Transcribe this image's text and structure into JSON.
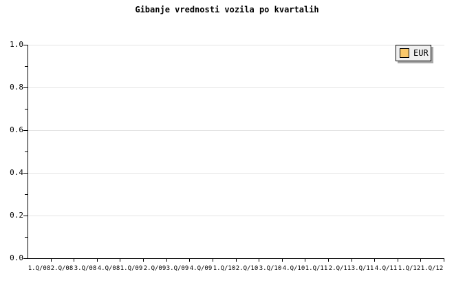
{
  "title": "Gibanje vrednosti vozila po kvartalih",
  "legend": {
    "label": "EUR",
    "swatch_color": "#f9c86b"
  },
  "colors": {
    "background": "#ffffff",
    "axis": "#000000",
    "grid": "#e4e4e4",
    "text": "#000000",
    "legend_background": "#f0f0f0",
    "legend_border": "#000000",
    "legend_shadow": "#a8a8a8"
  },
  "chart_data": {
    "type": "line",
    "title": "Gibanje vrednosti vozila po kvartalih",
    "categories": [
      "1.Q/08",
      "2.Q/08",
      "3.Q/08",
      "4.Q/08",
      "1.Q/09",
      "2.Q/09",
      "3.Q/09",
      "4.Q/09",
      "1.Q/10",
      "2.Q/10",
      "3.Q/10",
      "4.Q/10",
      "1.Q/11",
      "2.Q/11",
      "3.Q/11",
      "4.Q/11",
      "1.Q/12",
      "1.Q/12"
    ],
    "series": [
      {
        "name": "EUR",
        "color": "#f9c86b",
        "values": []
      }
    ],
    "xlabel": "",
    "ylabel": "",
    "ylim": [
      0.0,
      1.0
    ],
    "ytick_labels": [
      "0.0",
      "0.2",
      "0.4",
      "0.6",
      "0.8",
      "1.0"
    ],
    "y_minor_ticks": [
      0.1,
      0.3,
      0.5,
      0.7,
      0.9
    ],
    "grid": "horizontal-major",
    "legend_position": "top-right-inside",
    "plot_empty": true
  }
}
